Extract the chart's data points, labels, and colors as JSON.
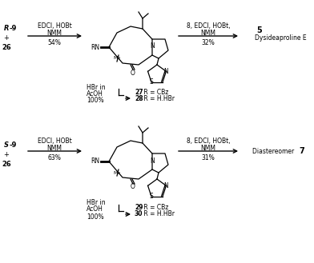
{
  "background_color": "#ffffff",
  "figsize": [
    3.92,
    3.29
  ],
  "dpi": 100,
  "top": {
    "reactant_italic": "R",
    "reactant_rest": "-9",
    "plus": "+",
    "num": "26",
    "reagent1_line1": "EDCl, HOBt",
    "reagent1_line2": "NMM",
    "yield1": "54%",
    "reagent2_line1": "8, EDCl, HOBt,",
    "reagent2_line2": "NMM",
    "yield2": "32%",
    "product_num": "5",
    "product_name": "Dysideaproline E",
    "hbr_line1": "HBr in",
    "hbr_line2": "AcOH",
    "hbr_yield": "100%",
    "prod_a_num": "27",
    "prod_a_rest": " R = CBz",
    "prod_b_num": "28",
    "prod_b_rest": " R = H.HBr"
  },
  "bottom": {
    "reactant_italic": "S",
    "reactant_rest": "-9",
    "plus": "+",
    "num": "26",
    "reagent1_line1": "EDCl, HOBt",
    "reagent1_line2": "NMM",
    "yield1": "63%",
    "reagent2_line1": "8, EDCl, HOBt,",
    "reagent2_line2": "NMM",
    "yield2": "31%",
    "product_text": "Diastereomer ",
    "product_num": "7",
    "hbr_line1": "HBr in",
    "hbr_line2": "AcOH",
    "hbr_yield": "100%",
    "prod_a_num": "29",
    "prod_a_rest": " R = CBz",
    "prod_b_num": "30",
    "prod_b_rest": " R = H.HBr"
  }
}
